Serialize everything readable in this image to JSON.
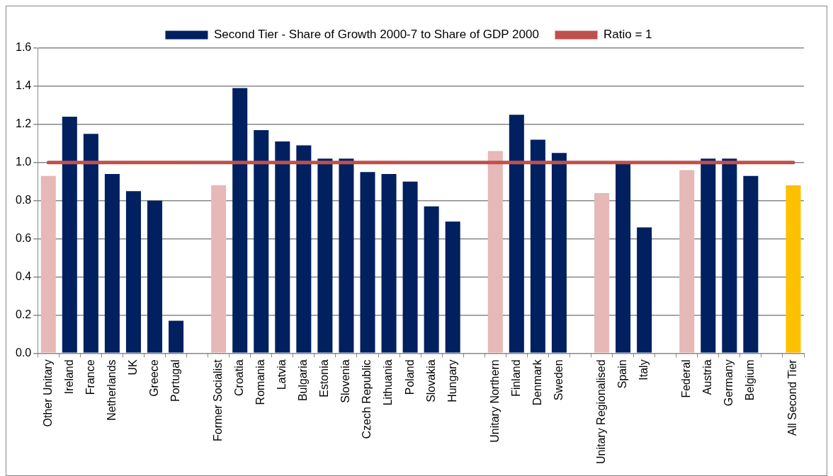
{
  "chart_data": {
    "type": "bar",
    "categories": [
      "Other Unitary",
      "Ireland",
      "France",
      "Netherlands",
      "UK",
      "Greece",
      "Portugal",
      null,
      "Former Socialist",
      "Croatia",
      "Romania",
      "Latvia",
      "Bulgaria",
      "Estonia",
      "Slovenia",
      "Czech Republic",
      "Lithuania",
      "Poland",
      "Slovakia",
      "Hungary",
      null,
      "Unitary Northern",
      "Finland",
      "Denmark",
      "Sweden",
      null,
      "Unitary Regionalised",
      "Spain",
      "Italy",
      null,
      "Federal",
      "Austria",
      "Germany",
      "Belgium",
      null,
      "All Second Tier"
    ],
    "series": [
      {
        "name": "Second Tier - Share of Growth 2000-7 to Share of GDP 2000",
        "color": "#002060",
        "colors": [
          "#e6b8b7",
          "#002060",
          "#002060",
          "#002060",
          "#002060",
          "#002060",
          "#002060",
          null,
          "#e6b8b7",
          "#002060",
          "#002060",
          "#002060",
          "#002060",
          "#002060",
          "#002060",
          "#002060",
          "#002060",
          "#002060",
          "#002060",
          "#002060",
          null,
          "#e6b8b7",
          "#002060",
          "#002060",
          "#002060",
          null,
          "#e6b8b7",
          "#002060",
          "#002060",
          null,
          "#e6b8b7",
          "#002060",
          "#002060",
          "#002060",
          null,
          "#ffc000"
        ],
        "values": [
          0.93,
          1.24,
          1.15,
          0.94,
          0.85,
          0.8,
          0.17,
          null,
          0.88,
          1.39,
          1.17,
          1.11,
          1.09,
          1.02,
          1.02,
          0.95,
          0.94,
          0.9,
          0.77,
          0.69,
          null,
          1.06,
          1.25,
          1.12,
          1.05,
          null,
          0.84,
          1.0,
          0.66,
          null,
          0.96,
          1.02,
          1.02,
          0.93,
          null,
          0.88
        ]
      },
      {
        "name": "Ratio = 1",
        "type": "line",
        "color": "#c0504d",
        "values": [
          1,
          1,
          1,
          1,
          1,
          1,
          1,
          1,
          1,
          1,
          1,
          1,
          1,
          1,
          1,
          1,
          1,
          1,
          1,
          1,
          1,
          1,
          1,
          1,
          1,
          1,
          1,
          1,
          1,
          1,
          1,
          1,
          1,
          1,
          1,
          1
        ]
      }
    ],
    "ylim": [
      0,
      1.6
    ],
    "yticks": [
      {
        "value": 0,
        "label": "0.0"
      },
      0.2,
      0.4,
      0.6,
      0.8,
      {
        "value": 1,
        "label": "1.0"
      },
      1.2,
      1.4,
      1.6
    ],
    "grid": "y",
    "legend": "top",
    "marker": "none",
    "line_style": "solid"
  }
}
